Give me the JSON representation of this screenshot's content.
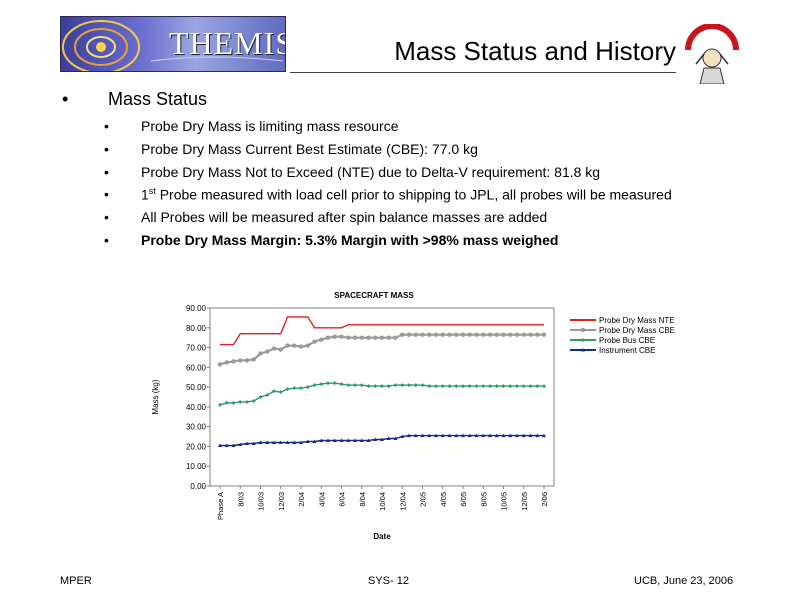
{
  "slide": {
    "logo_text": "THEMIS",
    "title": "Mass Status and History",
    "main_bullet": "Mass Status",
    "sub_bullets": [
      {
        "text": "Probe Dry Mass is limiting mass resource",
        "bold": false
      },
      {
        "text": "Probe Dry Mass Current Best Estimate (CBE): 77.0 kg",
        "bold": false
      },
      {
        "text": "Probe Dry Mass Not to Exceed (NTE) due to Delta-V requirement: 81.8 kg",
        "bold": false
      },
      {
        "text_pre": "1",
        "sup": "st",
        "text": " Probe measured with load cell prior to shipping to JPL, all probes will be measured",
        "bold": false
      },
      {
        "text": "All Probes will be measured after spin balance masses are added",
        "bold": false
      },
      {
        "text": "Probe Dry Mass Margin: 5.3% Margin with >98% mass weighed",
        "bold": true
      }
    ],
    "footer_left": "MPER",
    "footer_center": "SYS- 12",
    "footer_right": "UCB, June 23, 2006"
  },
  "colors": {
    "nte": "#e0201e",
    "cbe": "#9a9a9a",
    "bus": "#2e9a68",
    "instr": "#1a2a8a"
  },
  "chart_data": {
    "type": "line",
    "title": "SPACECRAFT MASS",
    "xlabel": "Date",
    "ylabel": "Mass (kg)",
    "ylim": [
      0,
      90
    ],
    "yticks": [
      "0.00",
      "10.00",
      "20.00",
      "30.00",
      "40.00",
      "50.00",
      "60.00",
      "70.00",
      "80.00",
      "90.00"
    ],
    "x_ticks": [
      "Phase A",
      "8/03",
      "10/03",
      "12/03",
      "2/04",
      "4/04",
      "6/04",
      "8/04",
      "10/04",
      "12/04",
      "2/05",
      "4/05",
      "6/05",
      "8/05",
      "10/05",
      "12/05",
      "2/06"
    ],
    "legend_position": "right",
    "series": [
      {
        "name": "Probe Dry Mass NTE",
        "color_key": "nte",
        "marker": "none",
        "values": [
          71.5,
          71.5,
          71.5,
          77,
          77,
          77,
          77,
          77,
          77,
          77,
          85.5,
          85.5,
          85.5,
          85.5,
          80,
          80,
          80,
          80,
          80,
          81.5,
          81.5,
          81.5,
          81.5,
          81.5,
          81.5,
          81.5,
          81.5,
          81.5,
          81.5,
          81.5,
          81.5,
          81.5,
          81.5,
          81.5,
          81.5,
          81.5,
          81.5,
          81.5,
          81.5,
          81.5,
          81.5,
          81.5,
          81.5,
          81.5,
          81.5,
          81.5,
          81.5,
          81.5,
          81.5
        ]
      },
      {
        "name": "Probe Dry Mass CBE",
        "color_key": "cbe",
        "marker": "circle",
        "values": [
          61.5,
          62.5,
          63,
          63.5,
          63.5,
          64,
          67,
          68,
          69.5,
          69,
          71,
          71,
          70.5,
          71,
          73,
          74,
          75,
          75.5,
          75.5,
          75,
          75,
          75,
          75,
          75,
          75,
          75,
          75,
          76.5,
          76.5,
          76.5,
          76.5,
          76.5,
          76.5,
          76.5,
          76.5,
          76.5,
          76.5,
          76.5,
          76.5,
          76.5,
          76.5,
          76.5,
          76.5,
          76.5,
          76.5,
          76.5,
          76.5,
          76.5,
          76.5
        ]
      },
      {
        "name": "Probe Bus CBE",
        "color_key": "bus",
        "marker": "diamond",
        "values": [
          41,
          42,
          42,
          42.5,
          42.5,
          43,
          45,
          46,
          48,
          47.5,
          49,
          49.5,
          49.5,
          50,
          51,
          51.5,
          52,
          52,
          51.5,
          51,
          51,
          51,
          50.5,
          50.5,
          50.5,
          50.5,
          51,
          51,
          51,
          51,
          51,
          50.5,
          50.5,
          50.5,
          50.5,
          50.5,
          50.5,
          50.5,
          50.5,
          50.5,
          50.5,
          50.5,
          50.5,
          50.5,
          50.5,
          50.5,
          50.5,
          50.5,
          50.5
        ]
      },
      {
        "name": "Instrument CBE",
        "color_key": "instr",
        "marker": "triangle",
        "values": [
          20.5,
          20.5,
          20.5,
          21,
          21.5,
          21.5,
          22,
          22,
          22,
          22,
          22,
          22,
          22,
          22.5,
          22.5,
          23,
          23,
          23,
          23,
          23,
          23,
          23,
          23,
          23.5,
          23.5,
          24,
          24,
          25,
          25.5,
          25.5,
          25.5,
          25.5,
          25.5,
          25.5,
          25.5,
          25.5,
          25.5,
          25.5,
          25.5,
          25.5,
          25.5,
          25.5,
          25.5,
          25.5,
          25.5,
          25.5,
          25.5,
          25.5,
          25.5
        ]
      }
    ]
  }
}
